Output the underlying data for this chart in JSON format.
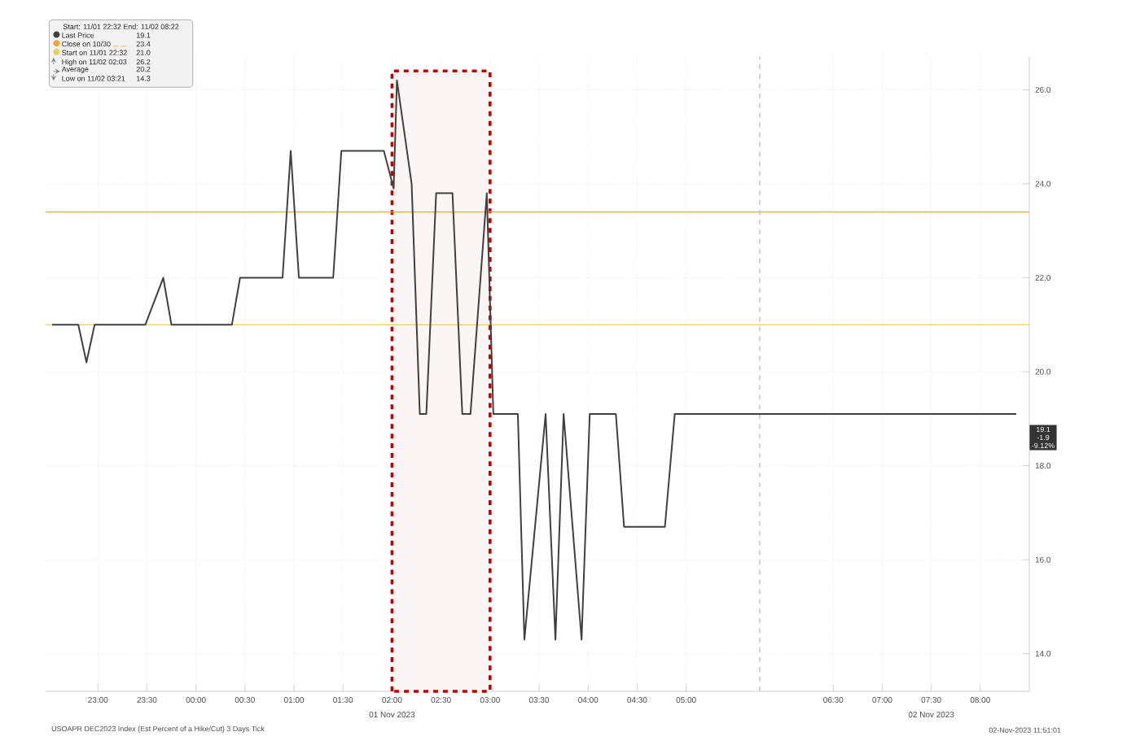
{
  "chart_data": {
    "type": "line",
    "legend": "top left",
    "grid": true,
    "marker": "none",
    "line_style": "solid",
    "x": [
      "2023-11-01T22:32",
      "2023-11-01T22:48",
      "2023-11-01T22:53",
      "2023-11-01T22:58",
      "2023-11-01T23:29",
      "2023-11-01T23:40",
      "2023-11-01T23:45",
      "2023-11-02T00:22",
      "2023-11-02T00:27",
      "2023-11-02T00:53",
      "2023-11-02T00:58",
      "2023-11-02T01:03",
      "2023-11-02T01:24",
      "2023-11-02T01:29",
      "2023-11-02T01:55",
      "2023-11-02T02:01",
      "2023-11-02T02:03",
      "2023-11-02T02:12",
      "2023-11-02T02:17",
      "2023-11-02T02:21",
      "2023-11-02T02:27",
      "2023-11-02T02:37",
      "2023-11-02T02:43",
      "2023-11-02T02:48",
      "2023-11-02T02:58",
      "2023-11-02T03:02",
      "2023-11-02T03:17",
      "2023-11-02T03:21",
      "2023-11-02T03:34",
      "2023-11-02T03:40",
      "2023-11-02T03:45",
      "2023-11-02T03:56",
      "2023-11-02T04:01",
      "2023-11-02T04:17",
      "2023-11-02T04:22",
      "2023-11-02T04:47",
      "2023-11-02T04:53",
      "2023-11-02T08:22"
    ],
    "series": [
      {
        "name": "Last Price",
        "color": "#404040",
        "values": [
          21.0,
          21.0,
          20.2,
          21.0,
          21.0,
          22.0,
          21.0,
          21.0,
          22.0,
          22.0,
          24.7,
          22.0,
          22.0,
          24.7,
          24.7,
          23.9,
          26.2,
          24.0,
          19.1,
          19.1,
          23.8,
          23.8,
          19.1,
          19.1,
          23.8,
          19.1,
          19.1,
          14.3,
          19.1,
          14.3,
          19.1,
          14.3,
          19.1,
          19.1,
          16.7,
          16.7,
          19.1,
          19.1
        ]
      }
    ],
    "xlim": [
      "2023-11-01T22:28",
      "2023-11-02T08:30"
    ],
    "ylim": [
      13.2,
      26.7
    ],
    "xticks": [
      {
        "value": "2023-11-01T23:00",
        "label": "23:00"
      },
      {
        "value": "2023-11-01T23:30",
        "label": "23:30"
      },
      {
        "value": "2023-11-02T00:00",
        "label": "00:00"
      },
      {
        "value": "2023-11-02T00:30",
        "label": "00:30"
      },
      {
        "value": "2023-11-02T01:00",
        "label": "01:00"
      },
      {
        "value": "2023-11-02T01:30",
        "label": "01:30"
      },
      {
        "value": "2023-11-02T02:00",
        "label": "02:00"
      },
      {
        "value": "2023-11-02T02:30",
        "label": "02:30"
      },
      {
        "value": "2023-11-02T03:00",
        "label": "03:00"
      },
      {
        "value": "2023-11-02T03:30",
        "label": "03:30"
      },
      {
        "value": "2023-11-02T04:00",
        "label": "04:00"
      },
      {
        "value": "2023-11-02T04:30",
        "label": "04:30"
      },
      {
        "value": "2023-11-02T05:00",
        "label": "05:00"
      },
      {
        "value": "2023-11-02T06:30",
        "label": "06:30"
      },
      {
        "value": "2023-11-02T07:00",
        "label": "07:00"
      },
      {
        "value": "2023-11-02T07:30",
        "label": "07:30"
      },
      {
        "value": "2023-11-02T08:00",
        "label": "08:00"
      }
    ],
    "yticks": [
      {
        "value": 14,
        "label": "14.0"
      },
      {
        "value": 16,
        "label": "16.0"
      },
      {
        "value": 18,
        "label": "18.0"
      },
      {
        "value": 20,
        "label": "20.0"
      },
      {
        "value": 22,
        "label": "22.0"
      },
      {
        "value": 24,
        "label": "24.0"
      },
      {
        "value": 26,
        "label": "26.0"
      }
    ],
    "ref_lines": [
      {
        "axis": "y",
        "value": 23.4,
        "color": "#f0a830"
      },
      {
        "axis": "y",
        "value": 21.0,
        "color": "#e8d060"
      },
      {
        "axis": "x",
        "value": "2023-11-02T05:45",
        "color": "#c8c8c8",
        "line_style": "dashed"
      }
    ],
    "bands": [
      {
        "axis": "x",
        "from": "2023-11-02T02:00",
        "to": "2023-11-02T03:00",
        "color": "#c00000"
      }
    ],
    "annotations": [
      "Start: 11/01 22:32 End: 11/02 08:22",
      "19.1",
      "Close on 10/30",
      "23.4",
      "Start on 11/01 22:32",
      "21.0",
      "High on 11/02 02:03",
      "26.2",
      "Average",
      "20.2",
      "Low on 11/02 03:21",
      "14.3",
      "19.1",
      "-1.9",
      "-9.12%",
      "01 Nov 2023",
      "02 Nov 2023",
      "USOAPR DEC2023 Index (Est Percent of a Hike/Cut) 3 Days Tick",
      "02-Nov-2023 11:51:01"
    ]
  }
}
